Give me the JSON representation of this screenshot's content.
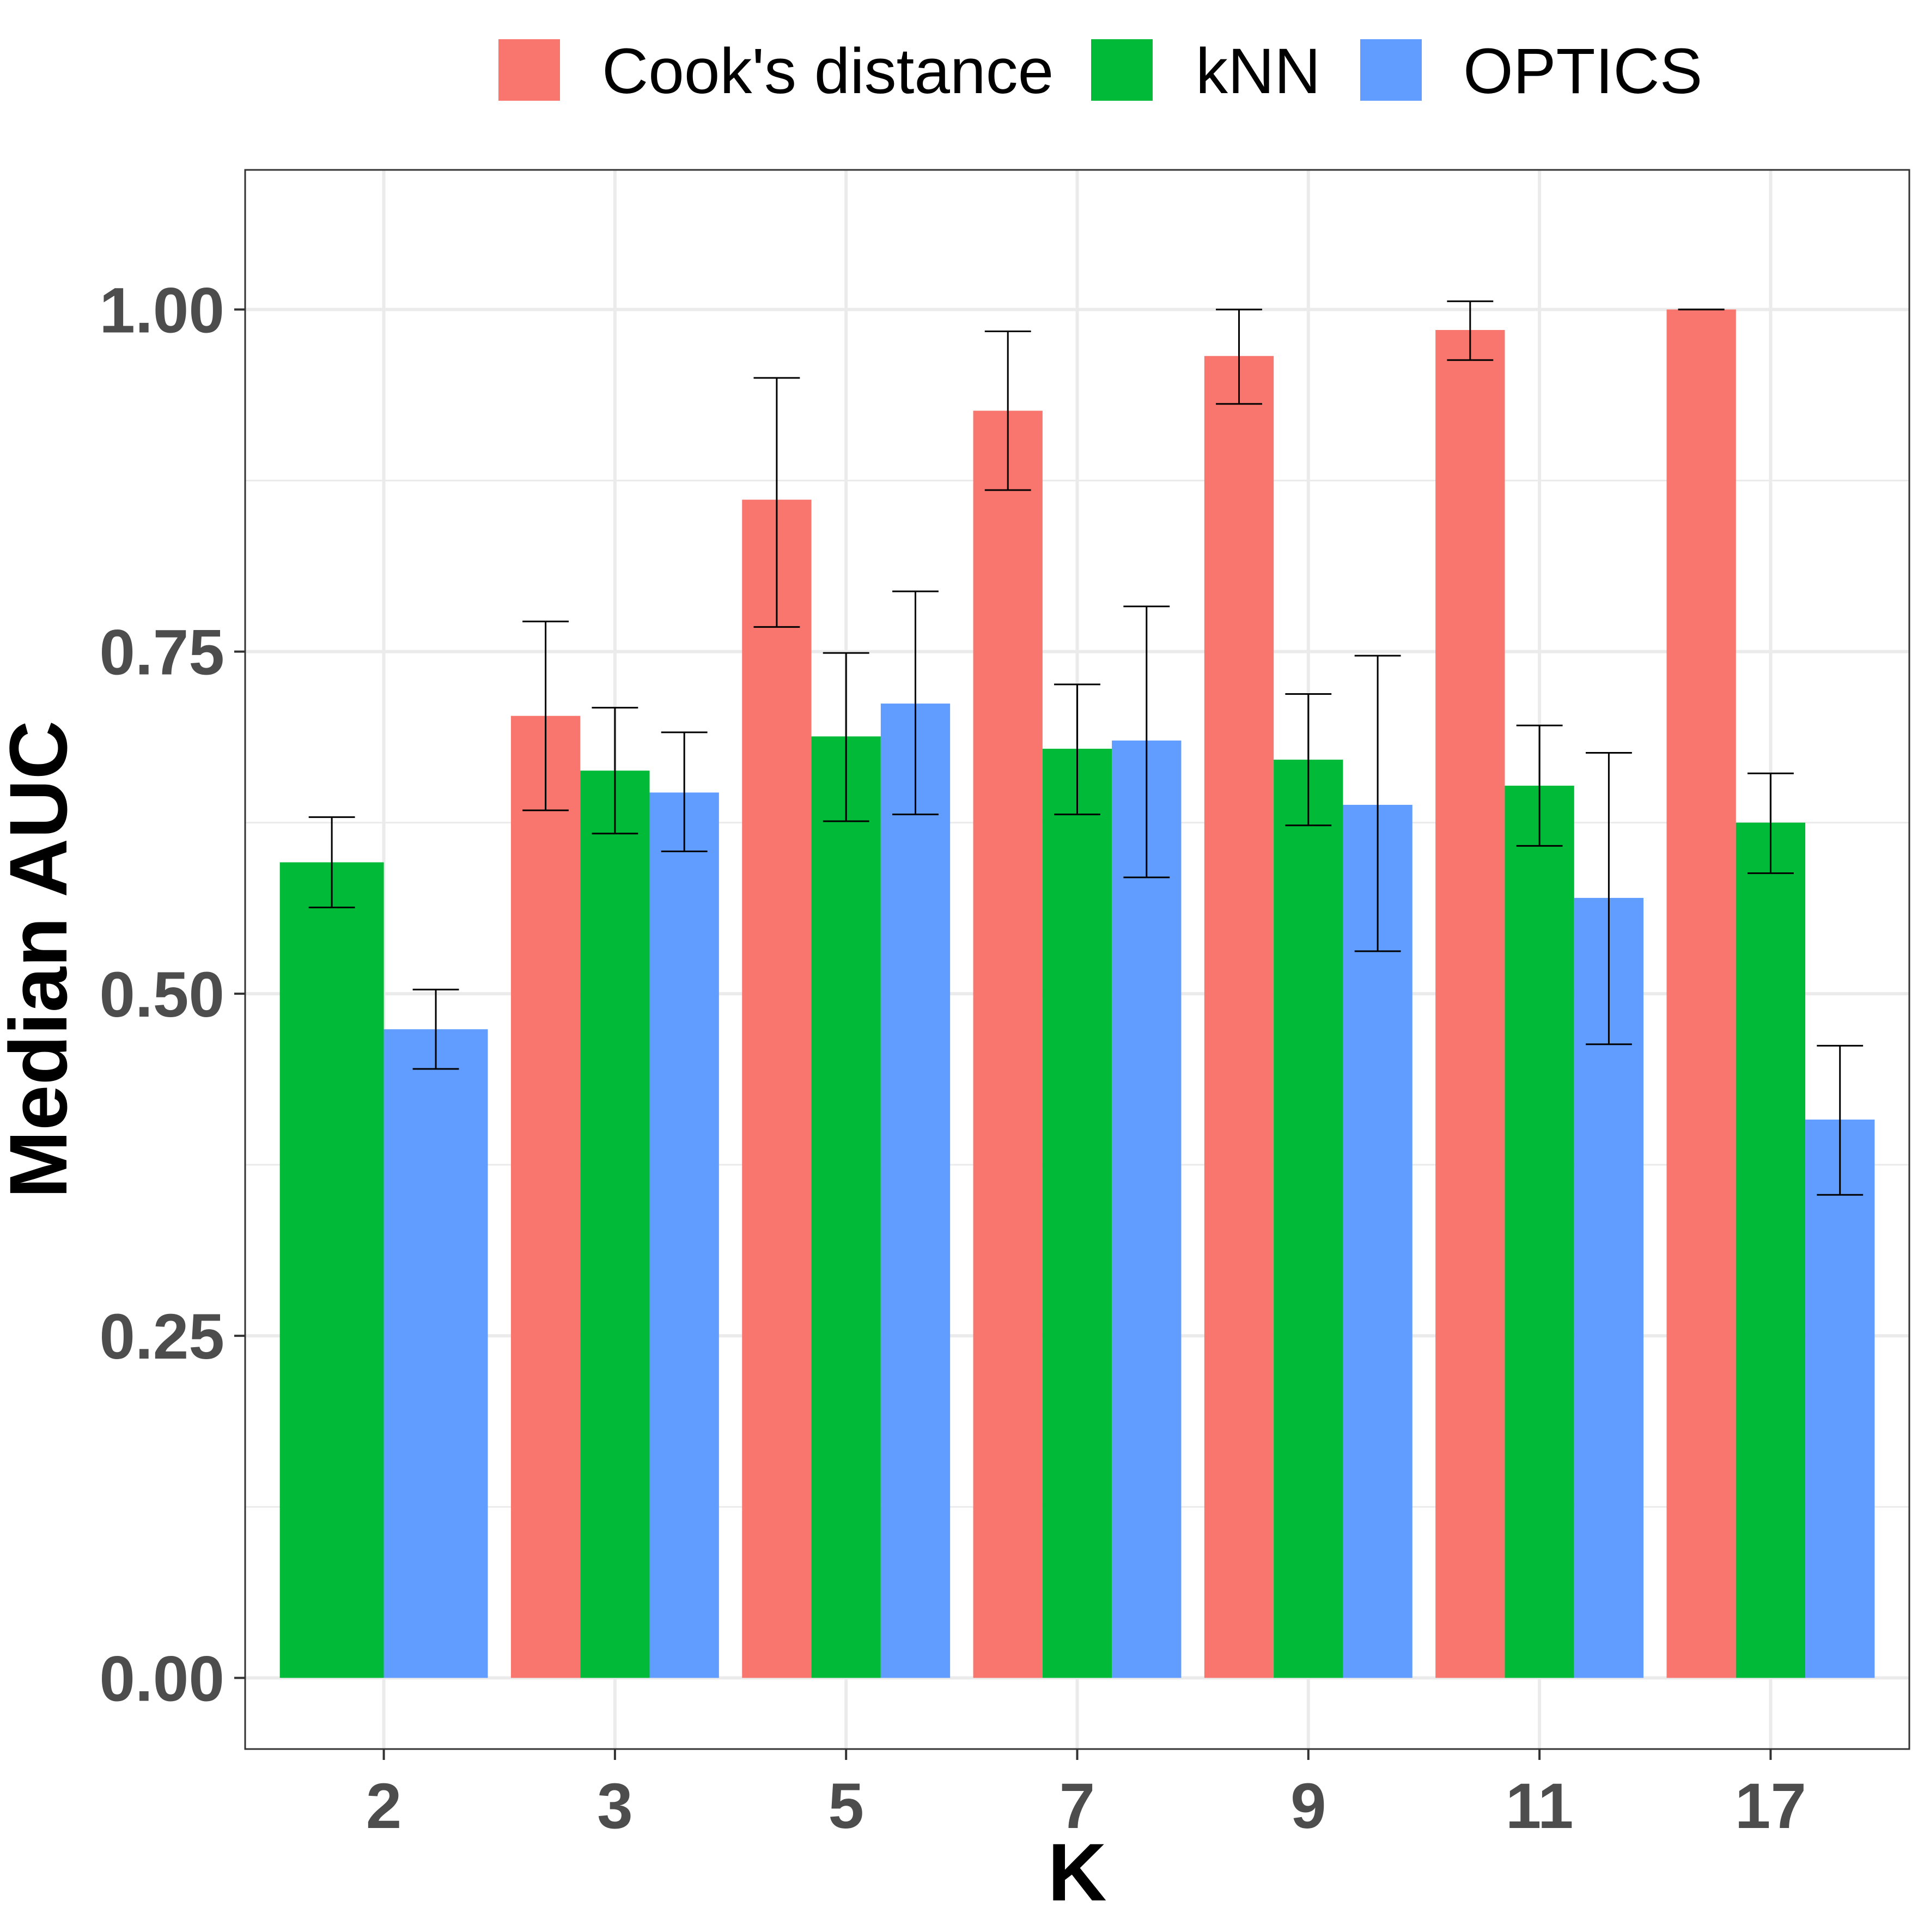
{
  "chart_data": {
    "type": "bar",
    "title": "",
    "xlabel": "K",
    "ylabel": "Median AUC",
    "categories": [
      "2",
      "3",
      "5",
      "7",
      "9",
      "11",
      "17"
    ],
    "ylim": [
      -0.052,
      1.102
    ],
    "yticks": [
      0.0,
      0.25,
      0.5,
      0.75,
      1.0
    ],
    "ytick_labels": [
      "0.00",
      "0.25",
      "0.50",
      "0.75",
      "1.00"
    ],
    "grid": true,
    "legend_position": "top",
    "series": [
      {
        "name": "Cook's distance",
        "color": "#F8766D",
        "values": [
          null,
          0.703,
          0.861,
          0.926,
          0.966,
          0.985,
          1.0
        ],
        "error_low": [
          null,
          0.634,
          0.768,
          0.868,
          0.931,
          0.963,
          1.0
        ],
        "error_high": [
          null,
          0.772,
          0.95,
          0.984,
          1.0,
          1.006,
          1.0
        ]
      },
      {
        "name": "kNN",
        "color": "#00BA38",
        "values": [
          0.596,
          0.663,
          0.688,
          0.679,
          0.671,
          0.652,
          0.625
        ],
        "error_low": [
          0.563,
          0.617,
          0.626,
          0.631,
          0.623,
          0.608,
          0.588
        ],
        "error_high": [
          0.629,
          0.709,
          0.749,
          0.726,
          0.719,
          0.696,
          0.661
        ]
      },
      {
        "name": "OPTICS",
        "color": "#619CFF",
        "values": [
          0.474,
          0.647,
          0.712,
          0.685,
          0.638,
          0.57,
          0.408
        ],
        "error_low": [
          0.445,
          0.604,
          0.631,
          0.585,
          0.531,
          0.463,
          0.353
        ],
        "error_high": [
          0.503,
          0.691,
          0.794,
          0.783,
          0.747,
          0.676,
          0.462
        ]
      }
    ]
  }
}
